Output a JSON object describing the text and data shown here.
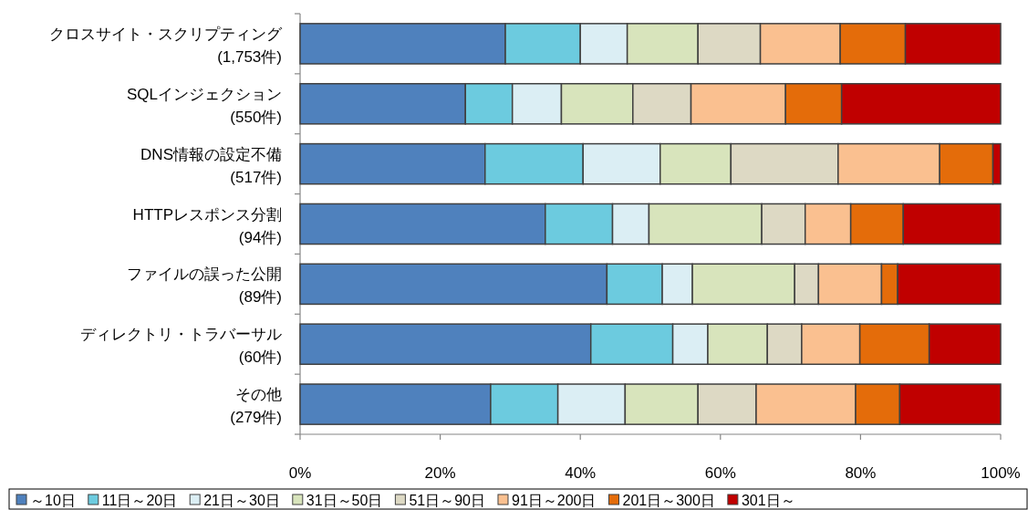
{
  "chart_data": {
    "type": "bar",
    "orientation": "horizontal",
    "stacked": true,
    "legend": "bottom",
    "categories": [
      "クロスサイト・スクリプティング\n(1,753件)",
      "SQLインジェクション\n(550件)",
      "DNS情報の設定不備\n(517件)",
      "HTTPレスポンス分割\n(94件)",
      "ファイルの誤った公開\n(89件)",
      "ディレクトリ・トラバーサル\n(60件)",
      "その他\n(279件)"
    ],
    "xlim": [
      0,
      100
    ],
    "xticks": [
      {
        "value": 0,
        "label": "0%"
      },
      {
        "value": 20,
        "label": "20%"
      },
      {
        "value": 40,
        "label": "40%"
      },
      {
        "value": 60,
        "label": "60%"
      },
      {
        "value": 80,
        "label": "80%"
      },
      {
        "value": 100,
        "label": "100%"
      }
    ],
    "series": [
      {
        "name": "～10日",
        "color": "#4f81bd",
        "values": [
          29.3,
          23.6,
          26.4,
          35.0,
          43.8,
          41.5,
          27.2
        ]
      },
      {
        "name": "11日～20日",
        "color": "#6ccbdf",
        "values": [
          10.7,
          6.7,
          14.0,
          9.6,
          7.9,
          11.7,
          9.6
        ]
      },
      {
        "name": "21日～30日",
        "color": "#dbeef4",
        "values": [
          6.7,
          7.0,
          11.0,
          5.2,
          4.3,
          5.0,
          9.6
        ]
      },
      {
        "name": "31日～50日",
        "color": "#d8e4bc",
        "values": [
          10.1,
          10.2,
          10.1,
          16.1,
          14.6,
          8.5,
          10.4
        ]
      },
      {
        "name": "51日～90日",
        "color": "#ddd9c4",
        "values": [
          8.9,
          8.3,
          15.3,
          6.2,
          3.4,
          4.9,
          8.3
        ]
      },
      {
        "name": "91日～200日",
        "color": "#fac090",
        "values": [
          11.4,
          13.5,
          14.5,
          6.5,
          9.0,
          8.3,
          14.2
        ]
      },
      {
        "name": "201日～300日",
        "color": "#e46c0a",
        "values": [
          9.3,
          8.0,
          7.6,
          7.5,
          2.3,
          9.9,
          6.3
        ]
      },
      {
        "name": "301日～",
        "color": "#c00000",
        "values": [
          13.6,
          22.7,
          1.1,
          13.9,
          14.7,
          10.2,
          14.4
        ]
      }
    ]
  }
}
